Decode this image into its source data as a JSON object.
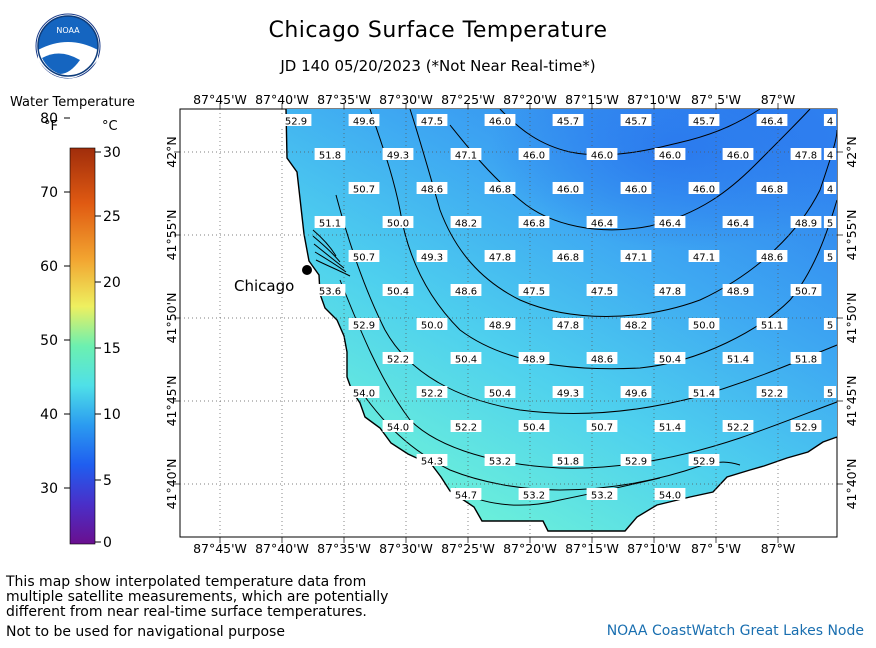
{
  "title": "Chicago Surface Temperature",
  "subtitle": "JD 140 05/20/2023 (*Not Near Real-time*)",
  "legend": {
    "title": "Water Temperature",
    "unit_f": "°F",
    "unit_c": "°C",
    "f_ticks": [
      "30",
      "40",
      "50",
      "60",
      "70",
      "80"
    ],
    "c_ticks": [
      "0",
      "5",
      "10",
      "15",
      "20",
      "25",
      "30"
    ]
  },
  "map": {
    "lon_labels": [
      "87°45'W",
      "87°40'W",
      "87°35'W",
      "87°30'W",
      "87°25'W",
      "87°20'W",
      "87°15'W",
      "87°10'W",
      "87° 5'W",
      "87°W"
    ],
    "lat_labels": [
      "42°N",
      "41°55'N",
      "41°50'N",
      "41°45'N",
      "41°40'N"
    ],
    "city_label": "Chicago",
    "values": [
      [
        "52.9",
        "49.6",
        "47.5",
        "46.0",
        "45.7",
        "45.7",
        "45.7",
        "46.4",
        "4"
      ],
      [
        "51.8",
        "49.3",
        "47.1",
        "46.0",
        "46.0",
        "46.0",
        "46.0",
        "47.8",
        "4"
      ],
      [
        "50.7",
        "48.6",
        "46.8",
        "46.0",
        "46.0",
        "46.0",
        "46.8",
        "4"
      ],
      [
        "51.1",
        "50.0",
        "48.2",
        "46.8",
        "46.4",
        "46.4",
        "46.4",
        "48.9",
        "5"
      ],
      [
        "50.7",
        "49.3",
        "47.8",
        "46.8",
        "47.1",
        "47.1",
        "48.6",
        "5"
      ],
      [
        "53.6",
        "50.4",
        "48.6",
        "47.5",
        "47.5",
        "47.8",
        "48.9",
        "50.7"
      ],
      [
        "52.9",
        "50.0",
        "48.9",
        "47.8",
        "48.2",
        "50.0",
        "51.1",
        "5"
      ],
      [
        "52.2",
        "50.4",
        "48.9",
        "48.6",
        "50.4",
        "51.4",
        "51.8"
      ],
      [
        "54.0",
        "52.2",
        "50.4",
        "49.3",
        "49.6",
        "51.4",
        "52.2",
        "5"
      ],
      [
        "54.0",
        "52.2",
        "50.4",
        "50.7",
        "51.4",
        "52.2",
        "52.9"
      ],
      [
        "54.3",
        "53.2",
        "51.8",
        "52.9",
        "52.9"
      ],
      [
        "54.7",
        "53.2",
        "53.2",
        "54.0"
      ]
    ]
  },
  "footnote": {
    "lines": [
      "This map show interpolated temperature data from",
      "multiple satellite measurements, which are potentially",
      "different from near real-time surface temperatures."
    ],
    "nav": "Not to be used for navigational purpose"
  },
  "credit": "NOAA CoastWatch Great Lakes Node",
  "logo_text": "NOAA",
  "colors": {
    "water_warm": "#66f2dd",
    "water_cool": "#2f8cf0",
    "grid": "#555555"
  }
}
